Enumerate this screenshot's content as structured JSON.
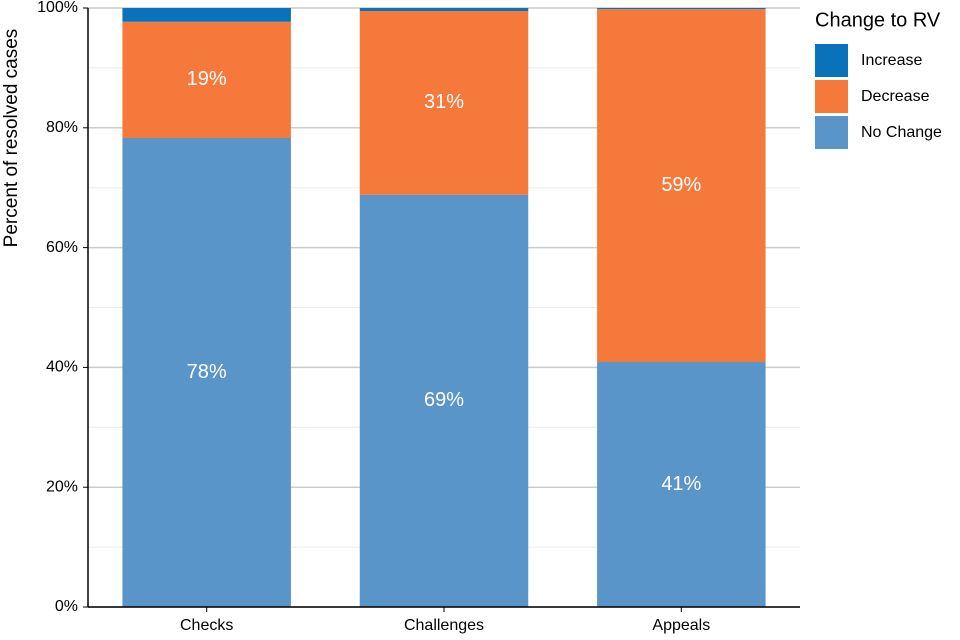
{
  "chart_data": {
    "type": "stacked_bar",
    "y_label": "Percent of resolved cases",
    "legend_title": "Change to RV",
    "legend_position": "right",
    "categories": [
      "Checks",
      "Challenges",
      "Appeals"
    ],
    "series": [
      {
        "name": "No Change",
        "color": "#5995c9",
        "values": [
          78.3,
          68.8,
          40.9
        ],
        "value_labels": [
          "78%",
          "69%",
          "41%"
        ]
      },
      {
        "name": "Decrease",
        "color": "#f5793a",
        "values": [
          19.4,
          30.7,
          58.9
        ],
        "value_labels": [
          "19%",
          "31%",
          "59%"
        ]
      },
      {
        "name": "Increase",
        "color": "#0a72ba",
        "values": [
          2.3,
          0.5,
          0.2
        ]
      }
    ],
    "ylim": [
      0,
      100
    ],
    "yticks": [
      {
        "value": 0,
        "label": "0%"
      },
      {
        "value": 20,
        "label": "20%"
      },
      {
        "value": 40,
        "label": "40%"
      },
      {
        "value": 60,
        "label": "60%"
      },
      {
        "value": 80,
        "label": "80%"
      },
      {
        "value": 100,
        "label": "100%"
      }
    ],
    "yminor": [
      10,
      30,
      50,
      70,
      90
    ],
    "grid": true
  }
}
